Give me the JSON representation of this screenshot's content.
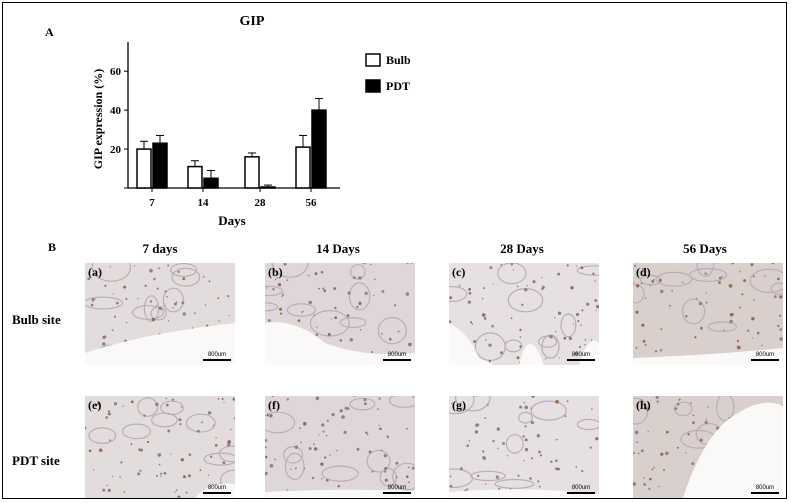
{
  "panel_labels": {
    "a": "A",
    "b": "B"
  },
  "chart_data": {
    "type": "bar",
    "title": "GIP",
    "xlabel": "Days",
    "ylabel": "GIP expression (%)",
    "categories": [
      "7",
      "14",
      "28",
      "56"
    ],
    "yticks": [
      "20",
      "40",
      "60"
    ],
    "ylim": [
      0,
      75
    ],
    "grid": false,
    "legend_position": "top-right",
    "series": [
      {
        "name": "Bulb",
        "values": [
          20,
          11,
          16,
          21
        ],
        "errors": [
          4,
          3,
          2,
          6
        ],
        "color": "#ffffff"
      },
      {
        "name": "PDT",
        "values": [
          23,
          5,
          0.5,
          40
        ],
        "errors": [
          4,
          4,
          1,
          6
        ],
        "color": "#000000"
      }
    ]
  },
  "micrographs": {
    "columns": [
      "7 days",
      "14 Days",
      "28 Days",
      "56 Days"
    ],
    "rows": [
      "Bulb site",
      "PDT site"
    ],
    "tags": [
      "(a)",
      "(b)",
      "(c)",
      "(d)",
      "(e)",
      "(f)",
      "(g)",
      "(h)"
    ],
    "scale_label": "800um"
  }
}
